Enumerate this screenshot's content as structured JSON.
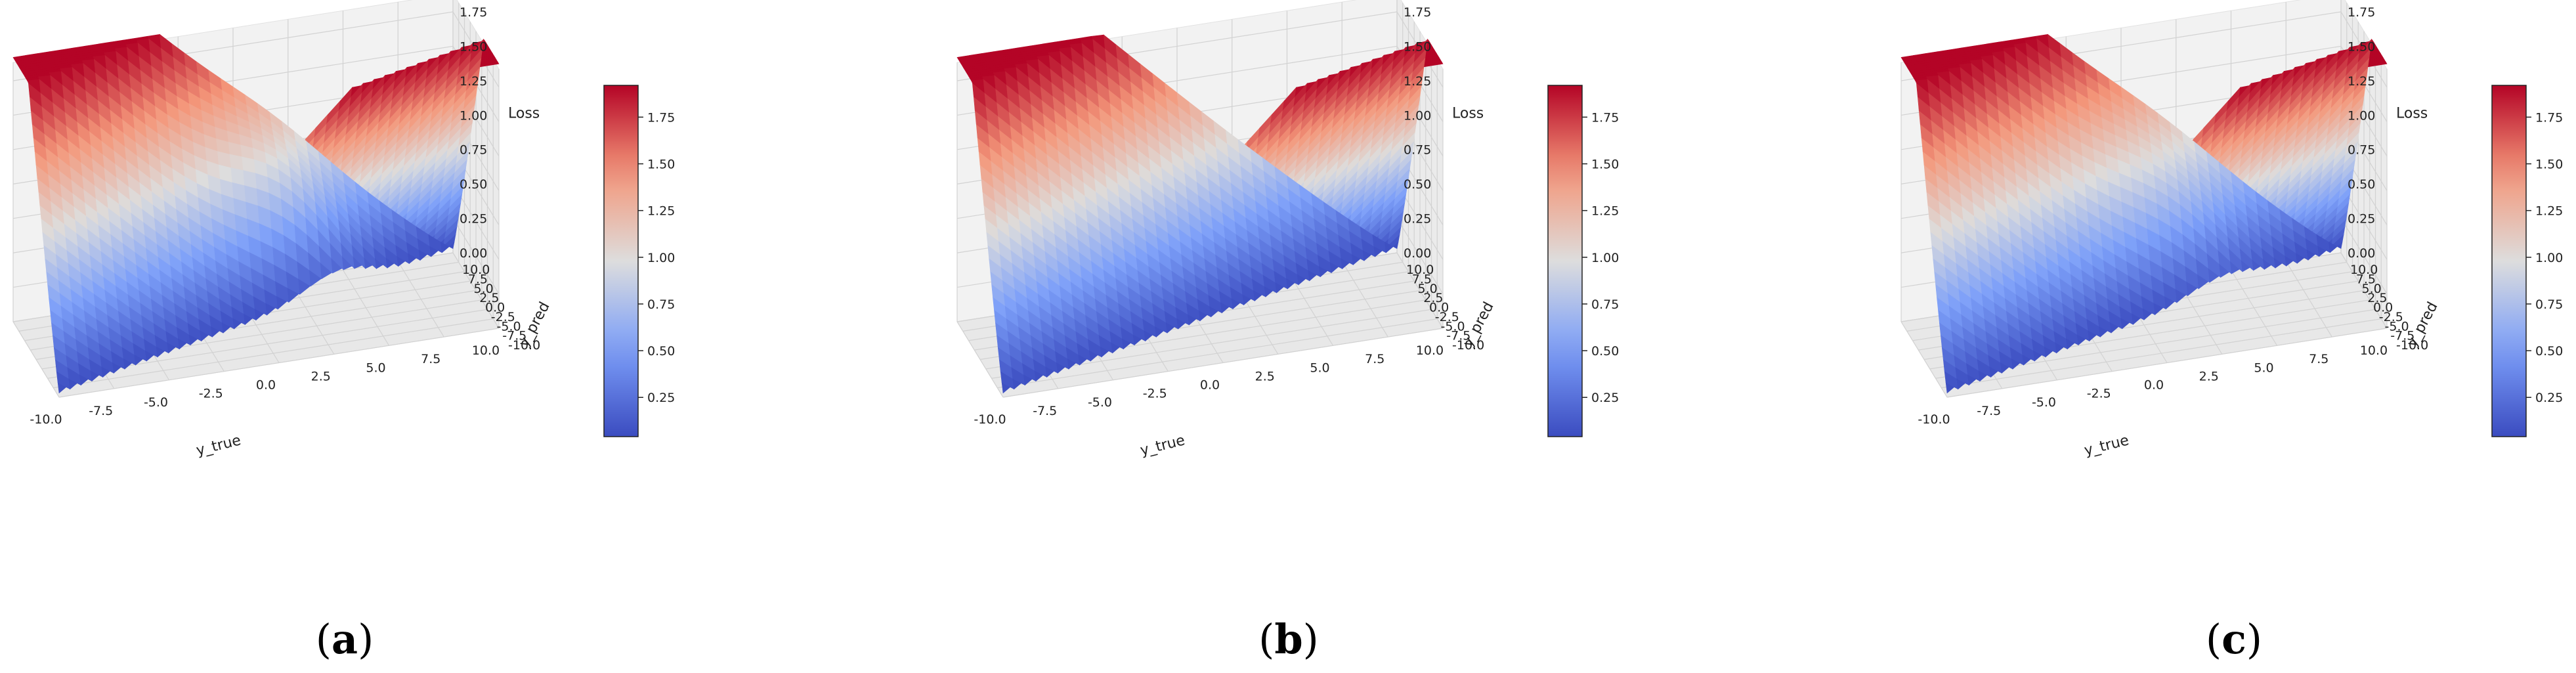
{
  "figure": {
    "panels": [
      {
        "label_text": "(a)",
        "bold_letter": "a",
        "variant": "a"
      },
      {
        "label_text": "(b)",
        "bold_letter": "b",
        "variant": "b"
      },
      {
        "label_text": "(c)",
        "bold_letter": "c",
        "variant": "c"
      }
    ]
  },
  "chart_data": [
    {
      "type": "surface3d",
      "title": "",
      "xlabel": "y_true",
      "ylabel": "y_pred",
      "zlabel": "Loss",
      "xlim": [
        -10,
        10
      ],
      "ylim": [
        -10,
        10
      ],
      "zlim": [
        0,
        1.85
      ],
      "x_ticks": [
        "-10.0",
        "-7.5",
        "-5.0",
        "-2.5",
        "0.0",
        "2.5",
        "5.0",
        "7.5",
        "10.0"
      ],
      "y_ticks": [
        "-10.0",
        "-7.5",
        "-5.0",
        "-2.5",
        "0.0",
        "2.5",
        "5.0",
        "7.5",
        "10.0"
      ],
      "z_ticks": [
        "0.00",
        "0.25",
        "0.50",
        "0.75",
        "1.00",
        "1.25",
        "1.50",
        "1.75"
      ],
      "colorbar": {
        "cmap": "coolwarm",
        "range": [
          0.04,
          1.92
        ],
        "ticks": [
          "0.25",
          "0.50",
          "0.75",
          "1.00",
          "1.25",
          "1.50",
          "1.75"
        ]
      },
      "colors": {
        "low": "#3b4cc0",
        "mid": "#dddddd",
        "high": "#b40426"
      },
      "grid": true
    },
    {
      "type": "surface3d",
      "title": "",
      "xlabel": "y_true",
      "ylabel": "y_pred",
      "zlabel": "Loss",
      "xlim": [
        -10,
        10
      ],
      "ylim": [
        -10,
        10
      ],
      "zlim": [
        0,
        1.85
      ],
      "x_ticks": [
        "-10.0",
        "-7.5",
        "-5.0",
        "-2.5",
        "0.0",
        "2.5",
        "5.0",
        "7.5",
        "10.0"
      ],
      "y_ticks": [
        "-10.0",
        "-7.5",
        "-5.0",
        "-2.5",
        "0.0",
        "2.5",
        "5.0",
        "7.5",
        "10.0"
      ],
      "z_ticks": [
        "0.00",
        "0.25",
        "0.50",
        "0.75",
        "1.00",
        "1.25",
        "1.50",
        "1.75"
      ],
      "colorbar": {
        "cmap": "coolwarm",
        "range": [
          0.04,
          1.92
        ],
        "ticks": [
          "0.25",
          "0.50",
          "0.75",
          "1.00",
          "1.25",
          "1.50",
          "1.75"
        ]
      },
      "colors": {
        "low": "#3b4cc0",
        "mid": "#dddddd",
        "high": "#b40426"
      },
      "grid": true
    },
    {
      "type": "surface3d",
      "title": "",
      "xlabel": "y_true",
      "ylabel": "y_pred",
      "zlabel": "Loss",
      "xlim": [
        -10,
        10
      ],
      "ylim": [
        -10,
        10
      ],
      "zlim": [
        0,
        1.85
      ],
      "x_ticks": [
        "-10.0",
        "-7.5",
        "-5.0",
        "-2.5",
        "0.0",
        "2.5",
        "5.0",
        "7.5",
        "10.0"
      ],
      "y_ticks": [
        "-10.0",
        "-7.5",
        "-5.0",
        "-2.5",
        "0.0",
        "2.5",
        "5.0",
        "7.5",
        "10.0"
      ],
      "z_ticks": [
        "0.00",
        "0.25",
        "0.50",
        "0.75",
        "1.00",
        "1.25",
        "1.50",
        "1.75"
      ],
      "colorbar": {
        "cmap": "coolwarm",
        "range": [
          0.04,
          1.92
        ],
        "ticks": [
          "0.25",
          "0.50",
          "0.75",
          "1.00",
          "1.25",
          "1.50",
          "1.75"
        ]
      },
      "colors": {
        "low": "#3b4cc0",
        "mid": "#dddddd",
        "high": "#b40426"
      },
      "grid": true
    }
  ]
}
